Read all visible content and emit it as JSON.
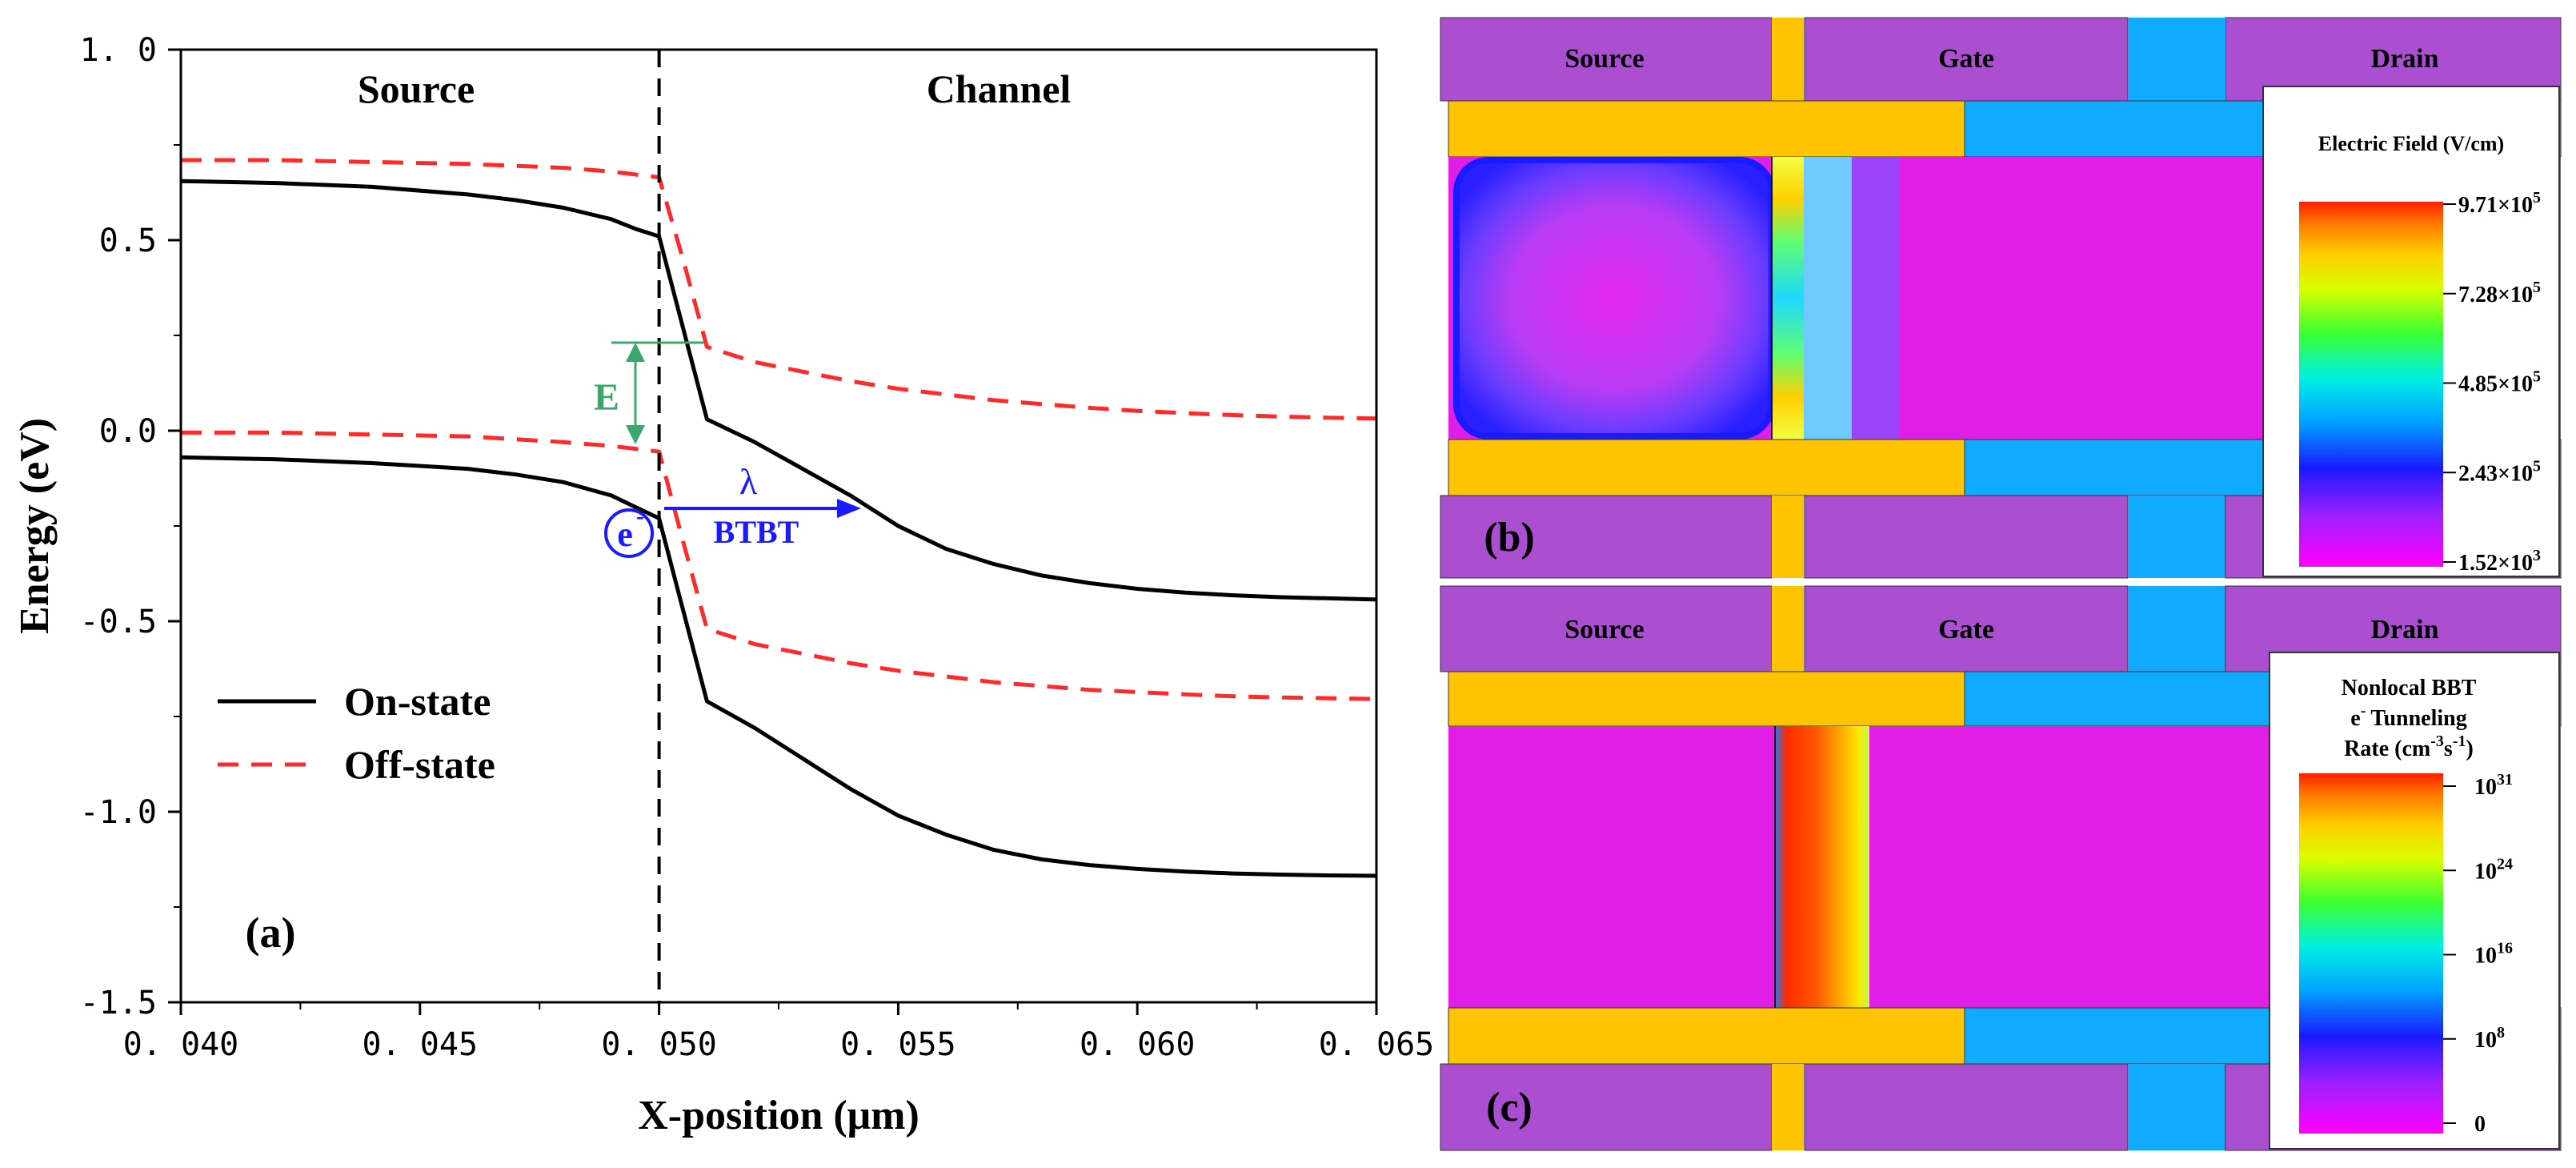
{
  "chart_data": [
    {
      "type": "line",
      "panel": "(a)",
      "xlabel": "X-position (μm)",
      "ylabel": "Energy (eV)",
      "xlim": [
        0.04,
        0.065
      ],
      "ylim": [
        -1.5,
        1.0
      ],
      "xticks": [
        0.04,
        0.045,
        0.05,
        0.055,
        0.06,
        0.065
      ],
      "xtick_labels": [
        "0. 040",
        "0. 045",
        "0. 050",
        "0. 055",
        "0. 060",
        "0. 065"
      ],
      "yticks": [
        1.0,
        0.5,
        0.0,
        -0.5,
        -1.0,
        -1.5
      ],
      "ytick_labels": [
        "1. 0",
        "0.5",
        "0.0",
        "-0.5",
        "-1.0",
        "-1.5"
      ],
      "region_labels": [
        "Source",
        "Channel"
      ],
      "junction_x": 0.05,
      "annotations": {
        "energy_gap": "E",
        "electron_symbol": "e",
        "electron_superscript": "-",
        "lambda": "λ",
        "btbt": "BTBT"
      },
      "legend": {
        "placement": "bottom-left",
        "entries": [
          "On-state",
          "Off-state"
        ]
      },
      "series": [
        {
          "name": "On-state",
          "band": "conduction",
          "style": "solid",
          "color": "#000000",
          "x": [
            0.04,
            0.042,
            0.044,
            0.046,
            0.047,
            0.048,
            0.049,
            0.0495,
            0.05,
            0.0505,
            0.051,
            0.052,
            0.053,
            0.054,
            0.055,
            0.056,
            0.057,
            0.058,
            0.059,
            0.06,
            0.061,
            0.062,
            0.063,
            0.064,
            0.065
          ],
          "y": [
            0.655,
            0.65,
            0.64,
            0.62,
            0.605,
            0.585,
            0.555,
            0.53,
            0.51,
            0.27,
            0.03,
            -0.03,
            -0.1,
            -0.17,
            -0.25,
            -0.31,
            -0.35,
            -0.38,
            -0.4,
            -0.415,
            -0.425,
            -0.432,
            -0.437,
            -0.44,
            -0.443
          ]
        },
        {
          "name": "On-state",
          "band": "valence",
          "style": "solid",
          "color": "#000000",
          "x": [
            0.04,
            0.042,
            0.044,
            0.046,
            0.047,
            0.048,
            0.049,
            0.0495,
            0.05,
            0.0505,
            0.051,
            0.052,
            0.053,
            0.054,
            0.055,
            0.056,
            0.057,
            0.058,
            0.059,
            0.06,
            0.061,
            0.062,
            0.063,
            0.064,
            0.065
          ],
          "y": [
            -0.07,
            -0.075,
            -0.085,
            -0.1,
            -0.115,
            -0.135,
            -0.17,
            -0.2,
            -0.23,
            -0.47,
            -0.71,
            -0.78,
            -0.86,
            -0.94,
            -1.01,
            -1.06,
            -1.1,
            -1.125,
            -1.14,
            -1.15,
            -1.157,
            -1.162,
            -1.165,
            -1.167,
            -1.168
          ]
        },
        {
          "name": "Off-state",
          "band": "conduction",
          "style": "dashed",
          "color": "#ff2a2a",
          "x": [
            0.04,
            0.042,
            0.044,
            0.046,
            0.048,
            0.049,
            0.05,
            0.0505,
            0.051,
            0.052,
            0.053,
            0.054,
            0.055,
            0.056,
            0.057,
            0.058,
            0.059,
            0.06,
            0.061,
            0.062,
            0.063,
            0.064,
            0.065
          ],
          "y": [
            0.71,
            0.71,
            0.705,
            0.7,
            0.69,
            0.68,
            0.665,
            0.45,
            0.22,
            0.18,
            0.155,
            0.13,
            0.11,
            0.095,
            0.08,
            0.07,
            0.06,
            0.052,
            0.046,
            0.041,
            0.037,
            0.034,
            0.032
          ]
        },
        {
          "name": "Off-state",
          "band": "valence",
          "style": "dashed",
          "color": "#ff2a2a",
          "x": [
            0.04,
            0.042,
            0.044,
            0.046,
            0.048,
            0.049,
            0.05,
            0.0505,
            0.051,
            0.052,
            0.053,
            0.054,
            0.055,
            0.056,
            0.057,
            0.058,
            0.059,
            0.06,
            0.061,
            0.062,
            0.063,
            0.064,
            0.065
          ],
          "y": [
            -0.005,
            -0.005,
            -0.01,
            -0.015,
            -0.03,
            -0.04,
            -0.055,
            -0.29,
            -0.52,
            -0.56,
            -0.585,
            -0.61,
            -0.63,
            -0.645,
            -0.66,
            -0.67,
            -0.68,
            -0.686,
            -0.692,
            -0.697,
            -0.7,
            -0.702,
            -0.704
          ]
        }
      ]
    },
    {
      "type": "heatmap",
      "panel": "(b)",
      "region_labels": [
        "Source",
        "Gate",
        "Drain"
      ],
      "colorbar_title": "Electric Field (V/cm)",
      "colorbar_ticks": [
        {
          "mant": "9.71×10",
          "exp": "5"
        },
        {
          "mant": "7.28×10",
          "exp": "5"
        },
        {
          "mant": "4.85×10",
          "exp": "5"
        },
        {
          "mant": "2.43×10",
          "exp": "5"
        },
        {
          "mant": "1.52×10",
          "exp": "3"
        }
      ]
    },
    {
      "type": "heatmap",
      "panel": "(c)",
      "region_labels": [
        "Source",
        "Gate",
        "Drain"
      ],
      "colorbar_title_lines": [
        "Nonlocal BBT",
        "Tunneling",
        "Rate (cm",
        "s",
        ")"
      ],
      "colorbar_title_super": [
        "-",
        "-3",
        "-1"
      ],
      "colorbar_ticks": [
        {
          "mant": "10",
          "exp": "31"
        },
        {
          "mant": "10",
          "exp": "24"
        },
        {
          "mant": "10",
          "exp": "16"
        },
        {
          "mant": "10",
          "exp": "8"
        },
        {
          "mant": "0",
          "exp": ""
        }
      ]
    }
  ],
  "colors": {
    "on_state": "#000000",
    "off_state": "#ff2a2a",
    "annotation_green": "#3aa86a",
    "annotation_blue": "#1a1aff",
    "device_purple": "#a94fd0",
    "gate_gold": "#ffc400",
    "cyan_block": "#10aaff",
    "field_magenta": "#e11ee6"
  }
}
